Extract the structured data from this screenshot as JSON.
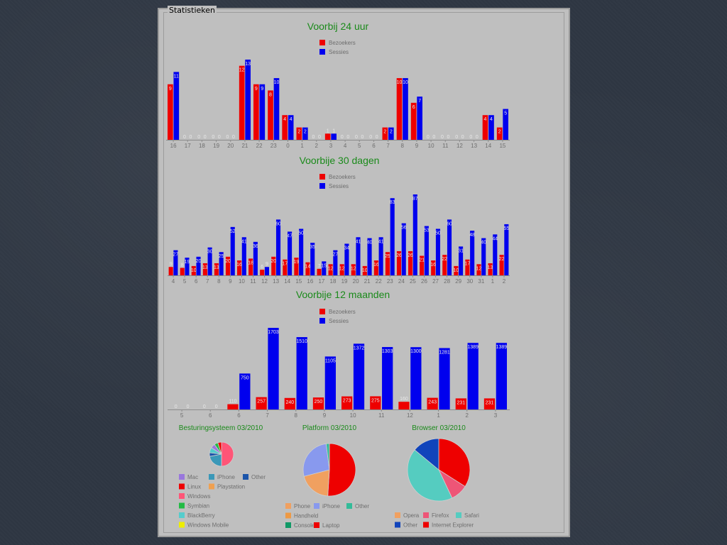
{
  "panel": {
    "title": "Statistieken"
  },
  "colors": {
    "bezoekers": "#ee0000",
    "sessies": "#0000ee",
    "title": "#1a8a1a",
    "axis": "#8c8c8c",
    "tick": "#6e6e6e",
    "value": "#e8e8e8"
  },
  "chart_data": [
    {
      "id": "c24",
      "type": "bar",
      "title": "Voorbij 24 uur",
      "legend_position": "top",
      "categories": [
        "16",
        "17",
        "18",
        "19",
        "20",
        "21",
        "22",
        "23",
        "0",
        "1",
        "2",
        "3",
        "4",
        "5",
        "6",
        "7",
        "8",
        "9",
        "10",
        "11",
        "12",
        "13",
        "14",
        "15"
      ],
      "series": [
        {
          "name": "Bezoekers",
          "color": "#ee0000",
          "values": [
            9,
            0,
            0,
            0,
            0,
            12,
            9,
            8,
            4,
            2,
            0,
            1,
            0,
            0,
            0,
            2,
            10,
            6,
            0,
            0,
            0,
            0,
            4,
            2
          ]
        },
        {
          "name": "Sessies",
          "color": "#0000ee",
          "values": [
            11,
            0,
            0,
            0,
            0,
            13,
            9,
            10,
            4,
            2,
            0,
            1,
            0,
            0,
            0,
            2,
            10,
            7,
            0,
            0,
            0,
            0,
            4,
            5
          ]
        }
      ],
      "ylim": [
        0,
        13
      ]
    },
    {
      "id": "c30",
      "type": "bar",
      "title": "Voorbije 30 dagen",
      "legend_position": "top",
      "categories": [
        "4",
        "5",
        "6",
        "7",
        "8",
        "9",
        "10",
        "11",
        "12",
        "13",
        "14",
        "15",
        "16",
        "17",
        "18",
        "19",
        "20",
        "21",
        "22",
        "23",
        "24",
        "25",
        "26",
        "27",
        "28",
        "29",
        "30",
        "31",
        "1",
        "2"
      ],
      "series": [
        {
          "name": "Bezoekers",
          "color": "#ee0000",
          "values": [
            9,
            8,
            10,
            13,
            13,
            20,
            16,
            18,
            6,
            20,
            17,
            19,
            14,
            7,
            12,
            12,
            12,
            10,
            16,
            25,
            26,
            26,
            21,
            16,
            22,
            10,
            17,
            12,
            13,
            22
          ]
        },
        {
          "name": "Sessies",
          "color": "#0000ee",
          "values": [
            27,
            19,
            20,
            30,
            25,
            52,
            41,
            36,
            9,
            60,
            47,
            50,
            35,
            15,
            27,
            34,
            41,
            40,
            41,
            83,
            56,
            87,
            53,
            50,
            60,
            31,
            48,
            40,
            44,
            55
          ]
        }
      ],
      "ylim": [
        0,
        87
      ]
    },
    {
      "id": "c12",
      "type": "bar",
      "title": "Voorbije 12 maanden",
      "legend_position": "top",
      "categories": [
        "5",
        "6",
        "6",
        "7",
        "8",
        "9",
        "10",
        "11",
        "12",
        "1",
        "2",
        "3"
      ],
      "series": [
        {
          "name": "Bezoekers",
          "color": "#ee0000",
          "values": [
            0,
            0,
            110,
            257,
            240,
            250,
            273,
            275,
            160,
            243,
            231,
            231
          ]
        },
        {
          "name": "Sessies",
          "color": "#0000ee",
          "values": [
            0,
            0,
            750,
            1703,
            1510,
            1105,
            1372,
            1303,
            1300,
            1281,
            1389,
            1389
          ]
        }
      ],
      "ylim": [
        0,
        1703
      ]
    },
    {
      "id": "pie1",
      "type": "pie",
      "title": "Besturingsysteem 03/2010",
      "slices": [
        {
          "label": "Windows",
          "value": 50,
          "color": "#ff5577"
        },
        {
          "label": "iPhone",
          "value": 22,
          "color": "#3a98b8"
        },
        {
          "label": "Other",
          "value": 5,
          "color": "#1c55aa"
        },
        {
          "label": "BlackBerry",
          "value": 7,
          "color": "#55cccc"
        },
        {
          "label": "Mac",
          "value": 6,
          "color": "#9977dd"
        },
        {
          "label": "Symbian",
          "value": 5,
          "color": "#22bb44"
        },
        {
          "label": "Linux",
          "value": 5,
          "color": "#ee0000"
        }
      ],
      "legend": [
        [
          "Mac",
          "iPhone",
          "Other"
        ],
        [
          "Linux",
          "Playstation"
        ],
        [
          "Windows"
        ],
        [
          "Symbian"
        ],
        [
          "BlackBerry"
        ],
        [
          "Windows Mobile"
        ]
      ],
      "legend_colors": {
        "Mac": "#9977dd",
        "iPhone": "#3a98b8",
        "Other": "#1c55aa",
        "Linux": "#ee0000",
        "Playstation": "#f0a050",
        "Windows": "#ff5577",
        "Symbian": "#22bb44",
        "BlackBerry": "#55cccc",
        "Windows Mobile": "#eeee00"
      }
    },
    {
      "id": "pie2",
      "type": "pie",
      "title": "Platform 03/2010",
      "slices": [
        {
          "label": "Laptop",
          "value": 51,
          "color": "#ee0000"
        },
        {
          "label": "Phone",
          "value": 20,
          "color": "#f0a060"
        },
        {
          "label": "iPhone",
          "value": 27,
          "color": "#8899ee"
        },
        {
          "label": "Other",
          "value": 2,
          "color": "#33bb99"
        }
      ],
      "legend": [
        [
          "Phone",
          "iPhone",
          "Other"
        ],
        [
          "Handheld"
        ],
        [
          "Console",
          "Laptop"
        ]
      ],
      "legend_colors": {
        "Phone": "#f0a060",
        "iPhone": "#8899ee",
        "Other": "#33bb99",
        "Handheld": "#ee9944",
        "Console": "#119966",
        "Laptop": "#ee0000"
      }
    },
    {
      "id": "pie3",
      "type": "pie",
      "title": "Browser 03/2010",
      "slices": [
        {
          "label": "Internet Explorer",
          "value": 34,
          "color": "#ee0000"
        },
        {
          "label": "Firefox",
          "value": 9,
          "color": "#ee5577"
        },
        {
          "label": "Safari",
          "value": 43,
          "color": "#55ccc0"
        },
        {
          "label": "Other",
          "value": 14,
          "color": "#1144bb"
        }
      ],
      "legend": [
        [
          "Opera",
          "Firefox",
          "Safari"
        ],
        [
          "Other",
          "Internet Explorer"
        ]
      ],
      "legend_colors": {
        "Opera": "#f0a060",
        "Firefox": "#ee5577",
        "Safari": "#55ccc0",
        "Other": "#1144bb",
        "Internet Explorer": "#ee0000"
      }
    }
  ]
}
